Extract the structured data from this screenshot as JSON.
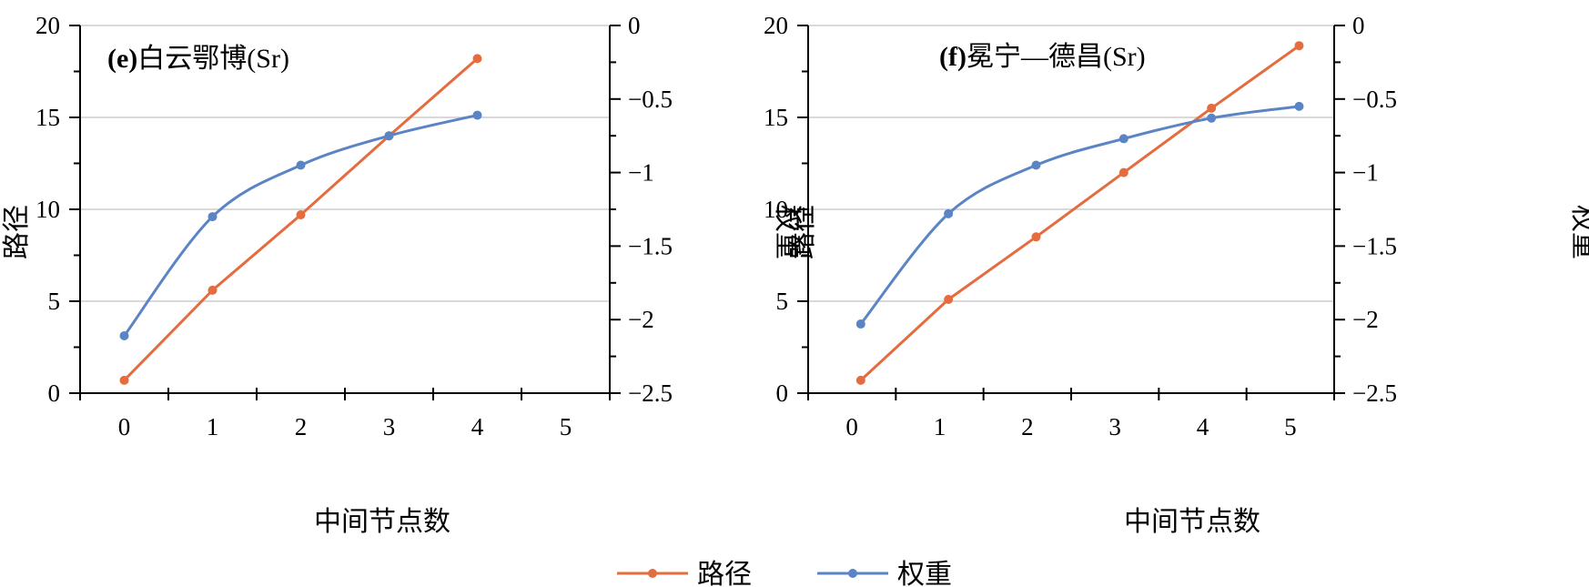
{
  "chart_data": [
    {
      "type": "line",
      "title": "(e)白云鄂博(Sr)",
      "title_tag": "(e)",
      "title_text": "白云鄂博(Sr)",
      "xlabel": "中间节点数",
      "ylabel": "路径",
      "y2label": "权重",
      "xlim": [
        -0.5,
        5.5
      ],
      "ylim": [
        0,
        20
      ],
      "y2lim": [
        -2.5,
        0
      ],
      "x_ticks": [
        "0",
        "1",
        "2",
        "3",
        "4",
        "5"
      ],
      "y_ticks": [
        "0",
        "5",
        "10",
        "15",
        "20"
      ],
      "y2_ticks": [
        "−2.5",
        "−2",
        "−1.5",
        "−1",
        "−0.5",
        "0"
      ],
      "grid": true,
      "series": [
        {
          "name": "路径",
          "axis": "left",
          "color": "#E46C3E",
          "x": [
            0,
            1,
            2,
            3,
            4
          ],
          "y": [
            0.7,
            5.6,
            9.7,
            14.0,
            18.2
          ]
        },
        {
          "name": "权重",
          "axis": "right",
          "color": "#5B84C4",
          "smooth": true,
          "x": [
            0,
            1,
            2,
            3,
            4
          ],
          "y": [
            -2.11,
            -1.3,
            -0.95,
            -0.75,
            -0.61
          ]
        }
      ]
    },
    {
      "type": "line",
      "title": "(f)冕宁—德昌(Sr)",
      "title_tag": "(f)",
      "title_text": "冕宁—德昌(Sr)",
      "xlabel": "中间节点数",
      "ylabel": "路径",
      "y2label": "权重",
      "xlim": [
        -0.5,
        5.5
      ],
      "ylim": [
        0,
        20
      ],
      "y2lim": [
        -2.5,
        0
      ],
      "x_ticks": [
        "0",
        "1",
        "2",
        "3",
        "4",
        "5"
      ],
      "y_ticks": [
        "0",
        "5",
        "10",
        "15",
        "20"
      ],
      "y2_ticks": [
        "−2.5",
        "−2",
        "−1.5",
        "−1",
        "−0.5",
        "0"
      ],
      "grid": true,
      "series": [
        {
          "name": "路径",
          "axis": "left",
          "color": "#E46C3E",
          "x": [
            0.1,
            1.1,
            2.1,
            3.1,
            4.1,
            5.1
          ],
          "y": [
            0.7,
            5.1,
            8.5,
            12.0,
            15.5,
            18.9
          ]
        },
        {
          "name": "权重",
          "axis": "right",
          "color": "#5B84C4",
          "smooth": true,
          "x": [
            0.1,
            1.1,
            2.1,
            3.1,
            4.1,
            5.1
          ],
          "y": [
            -2.03,
            -1.28,
            -0.95,
            -0.77,
            -0.63,
            -0.55
          ]
        }
      ]
    }
  ],
  "legend": {
    "position": "bottom-center",
    "items": [
      {
        "label": "路径",
        "color": "#E46C3E"
      },
      {
        "label": "权重",
        "color": "#5B84C4"
      }
    ]
  }
}
